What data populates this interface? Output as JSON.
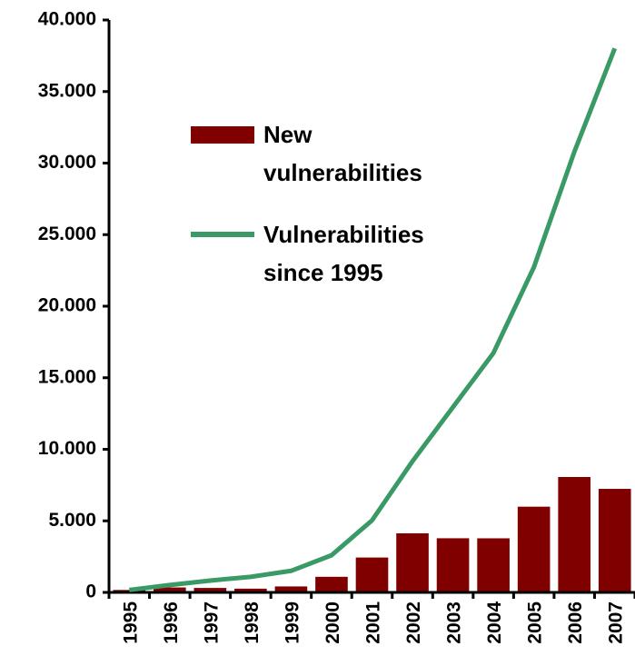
{
  "chart_data": {
    "type": "bar_line",
    "categories": [
      "1995",
      "1996",
      "1997",
      "1998",
      "1999",
      "2000",
      "2001",
      "2002",
      "2003",
      "2004",
      "2005",
      "2006",
      "2007"
    ],
    "series": [
      {
        "name": "New vulnerabilities",
        "type": "bar",
        "color": "#800000",
        "values": [
          171,
          345,
          311,
          262,
          417,
          1090,
          2437,
          4129,
          3784,
          3780,
          5990,
          8064,
          7236
        ]
      },
      {
        "name": "Vulnerabilities since 1995",
        "type": "line",
        "color": "#3a9a66",
        "values": [
          171,
          516,
          827,
          1089,
          1506,
          2596,
          5033,
          9162,
          12946,
          16726,
          22716,
          30780,
          38016
        ]
      }
    ],
    "ylim": [
      0,
      40000
    ],
    "yticks": [
      0,
      {
        "value": 5000,
        "label": "5.000"
      },
      {
        "value": 10000,
        "label": "10.000"
      },
      {
        "value": 15000,
        "label": "15.000"
      },
      {
        "value": 20000,
        "label": "20.000"
      },
      {
        "value": 25000,
        "label": "25.000"
      },
      {
        "value": 30000,
        "label": "30.000"
      },
      {
        "value": 35000,
        "label": "35.000"
      },
      {
        "value": 40000,
        "label": "40.000"
      }
    ],
    "grid": false
  }
}
